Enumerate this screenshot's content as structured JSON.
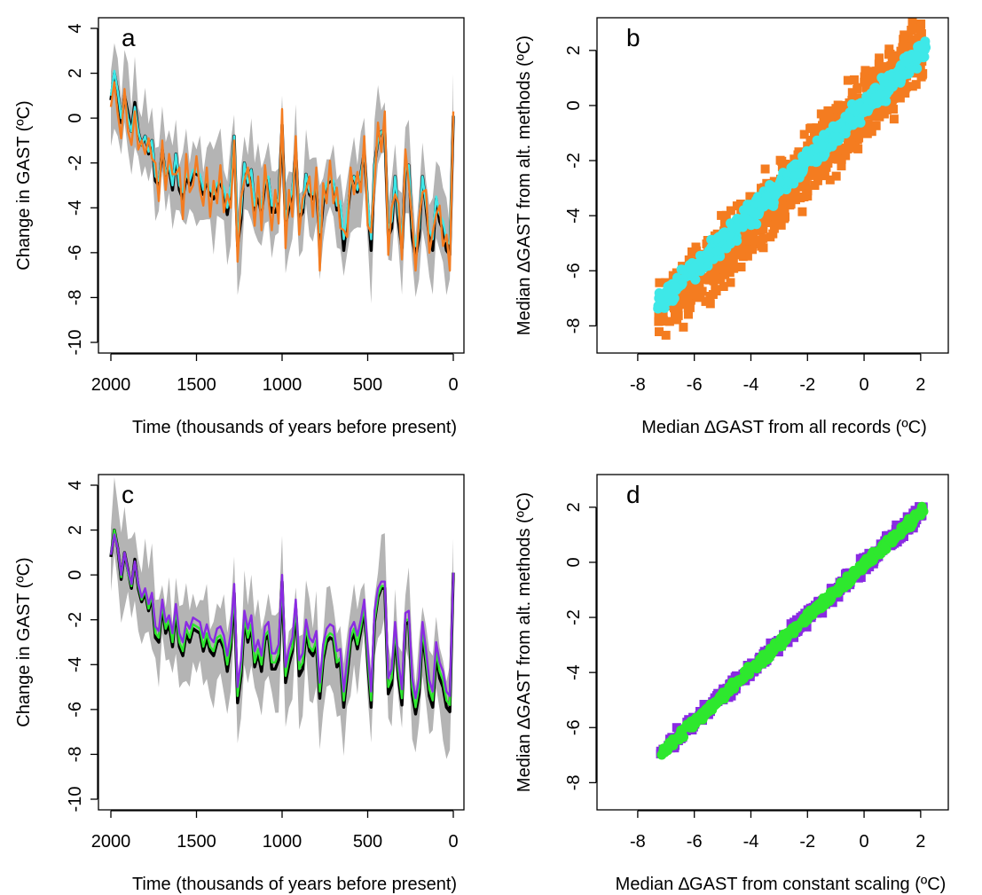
{
  "figure": {
    "colors": {
      "band": "#b4b4b4",
      "black": "#000000",
      "cyan": "#3ee8e8",
      "orange": "#f47c20",
      "purple": "#8a2be2",
      "green": "#2ee82e"
    }
  },
  "chart_data": [
    {
      "panel": "a",
      "type": "line",
      "label": "a",
      "xlabel": "Time (thousands of years before present)",
      "ylabel": "Change in GAST (ºC)",
      "xlim": [
        2000,
        0
      ],
      "ylim": [
        -10,
        4
      ],
      "xticks": [
        "2000",
        "1500",
        "1000",
        "500",
        "0"
      ],
      "yticks": [
        "-10",
        "-8",
        "-6",
        "-4",
        "-2",
        "0",
        "2",
        "4"
      ],
      "x": [
        2000,
        1980,
        1960,
        1940,
        1920,
        1900,
        1880,
        1860,
        1840,
        1820,
        1800,
        1780,
        1760,
        1740,
        1720,
        1700,
        1680,
        1660,
        1640,
        1620,
        1600,
        1580,
        1560,
        1540,
        1520,
        1500,
        1480,
        1460,
        1440,
        1420,
        1400,
        1380,
        1360,
        1340,
        1320,
        1300,
        1280,
        1260,
        1240,
        1220,
        1200,
        1180,
        1160,
        1140,
        1120,
        1100,
        1080,
        1060,
        1040,
        1020,
        1000,
        980,
        960,
        940,
        920,
        900,
        880,
        860,
        840,
        820,
        800,
        780,
        760,
        740,
        720,
        700,
        680,
        660,
        640,
        620,
        600,
        580,
        560,
        540,
        520,
        500,
        480,
        460,
        440,
        420,
        400,
        380,
        360,
        340,
        320,
        300,
        280,
        260,
        240,
        220,
        200,
        180,
        160,
        140,
        120,
        100,
        80,
        60,
        40,
        20,
        0
      ],
      "series": [
        {
          "color_key": "black",
          "values": [
            0.8,
            2.0,
            1.2,
            -0.2,
            1.0,
            0.2,
            -0.6,
            0.7,
            -0.6,
            -1.2,
            -0.8,
            -1.6,
            -1.0,
            -2.8,
            -3.0,
            -1.4,
            -2.6,
            -2.2,
            -3.2,
            -1.6,
            -3.2,
            -3.6,
            -2.6,
            -3.0,
            -2.4,
            -2.5,
            -2.6,
            -3.4,
            -2.8,
            -3.4,
            -3.6,
            -3.0,
            -2.9,
            -3.3,
            -4.3,
            -3.2,
            -0.8,
            -5.7,
            -4.5,
            -2.0,
            -3.0,
            -2.3,
            -4.1,
            -3.5,
            -4.3,
            -2.9,
            -2.7,
            -4.2,
            -4.2,
            -3.8,
            -0.3,
            -4.8,
            -4.0,
            -3.4,
            -1.5,
            -4.5,
            -4.2,
            -2.5,
            -3.4,
            -3.6,
            -3.1,
            -5.5,
            -3.8,
            -3.0,
            -2.8,
            -2.9,
            -4.1,
            -3.9,
            -5.9,
            -4.5,
            -3.0,
            -2.6,
            -3.3,
            -2.5,
            -1.5,
            -3.9,
            -5.9,
            -2.1,
            -1.0,
            -0.6,
            -0.6,
            -5.3,
            -4.9,
            -2.6,
            -4.6,
            -5.8,
            -2.2,
            -2.1,
            -5.3,
            -6.2,
            -5.3,
            -2.6,
            -3.9,
            -5.4,
            -5.9,
            -3.6,
            -4.6,
            -5.0,
            -5.9,
            -6.1,
            0.1
          ]
        },
        {
          "color_key": "cyan",
          "values": [
            1.0,
            2.1,
            1.2,
            0.0,
            1.0,
            0.0,
            -0.6,
            0.5,
            -0.6,
            -1.2,
            -0.8,
            -1.5,
            -1.0,
            -2.6,
            -2.8,
            -1.4,
            -2.5,
            -2.1,
            -3.0,
            -1.6,
            -3.0,
            -3.3,
            -2.5,
            -2.8,
            -2.3,
            -2.4,
            -2.5,
            -3.2,
            -2.7,
            -3.2,
            -3.4,
            -2.9,
            -2.8,
            -3.1,
            -4.0,
            -3.0,
            -0.8,
            -5.2,
            -4.2,
            -2.0,
            -2.9,
            -2.3,
            -3.9,
            -3.3,
            -4.0,
            -2.8,
            -2.6,
            -3.9,
            -3.9,
            -3.6,
            -0.4,
            -4.5,
            -3.8,
            -3.2,
            -1.5,
            -4.2,
            -4.0,
            -2.5,
            -3.3,
            -3.4,
            -3.0,
            -5.1,
            -3.6,
            -2.9,
            -2.7,
            -2.8,
            -3.9,
            -3.7,
            -5.4,
            -4.2,
            -2.9,
            -2.6,
            -3.2,
            -2.5,
            -1.5,
            -3.7,
            -5.4,
            -2.1,
            -1.0,
            -0.6,
            -0.6,
            -4.9,
            -4.6,
            -2.6,
            -4.3,
            -5.3,
            -2.2,
            -2.1,
            -4.9,
            -5.7,
            -4.9,
            -2.6,
            -3.8,
            -5.0,
            -5.4,
            -3.5,
            -4.3,
            -4.6,
            -5.5,
            -5.6,
            0.1
          ]
        },
        {
          "color_key": "orange",
          "values": [
            0.5,
            1.6,
            0.2,
            -0.9,
            1.3,
            -0.6,
            -1.2,
            0.3,
            -1.4,
            -1.0,
            -1.6,
            -0.9,
            -1.8,
            -2.0,
            -3.7,
            -1.0,
            -3.2,
            -1.6,
            -2.5,
            -2.5,
            -2.2,
            -4.5,
            -1.6,
            -3.3,
            -3.0,
            -1.7,
            -3.2,
            -3.9,
            -2.2,
            -4.4,
            -2.8,
            -3.8,
            -2.1,
            -4.2,
            -3.4,
            -4.0,
            -1.0,
            -6.4,
            -3.6,
            -2.8,
            -2.2,
            -3.2,
            -4.8,
            -2.6,
            -5.0,
            -2.1,
            -3.6,
            -5.0,
            -3.2,
            -4.7,
            0.4,
            -5.8,
            -3.2,
            -4.4,
            -0.8,
            -5.2,
            -3.6,
            -3.2,
            -2.6,
            -4.4,
            -2.2,
            -6.8,
            -2.9,
            -3.8,
            -1.9,
            -3.8,
            -3.1,
            -4.9,
            -5.0,
            -5.3,
            -2.2,
            -3.4,
            -2.4,
            -3.3,
            -0.8,
            -4.8,
            -5.1,
            -2.9,
            -0.2,
            -1.5,
            0.3,
            -6.1,
            -4.0,
            -3.4,
            -3.8,
            -6.3,
            -1.4,
            -2.9,
            -4.6,
            -6.8,
            -4.5,
            -3.3,
            -3.2,
            -6.0,
            -5.1,
            -4.3,
            -3.9,
            -5.7,
            -5.2,
            -6.8,
            0.3
          ]
        }
      ]
    },
    {
      "panel": "b",
      "type": "scatter",
      "label": "b",
      "xlabel": "Median ∆GAST from all records (ºC)",
      "ylabel": "Median ∆GAST from alt. methods (ºC)",
      "xlim": [
        -9,
        2.6
      ],
      "ylim": [
        -8.6,
        2.8
      ],
      "xticks": [
        "-8",
        "-6",
        "-4",
        "-2",
        "0",
        "2"
      ],
      "yticks": [
        "-8",
        "-6",
        "-4",
        "-2",
        "0",
        "2"
      ],
      "series": [
        {
          "color_key": "orange",
          "marker": "square",
          "x_range": [
            -7.3,
            2.1
          ],
          "fit": {
            "slope": 1.05,
            "intercept": -0.05
          },
          "spread": 0.9,
          "n": 900
        },
        {
          "color_key": "cyan",
          "marker": "circle",
          "x_range": [
            -7.3,
            2.2
          ],
          "fit": {
            "slope": 0.98,
            "intercept": -0.05
          },
          "spread": 0.3,
          "n": 600
        }
      ]
    },
    {
      "panel": "c",
      "type": "line",
      "label": "c",
      "xlabel": "Time (thousands of years before present)",
      "ylabel": "Change in GAST (ºC)",
      "xlim": [
        2000,
        0
      ],
      "ylim": [
        -10,
        4
      ],
      "xticks": [
        "2000",
        "1500",
        "1000",
        "500",
        "0"
      ],
      "yticks": [
        "-10",
        "-8",
        "-6",
        "-4",
        "-2",
        "0",
        "2",
        "4"
      ],
      "x": [
        2000,
        1980,
        1960,
        1940,
        1920,
        1900,
        1880,
        1860,
        1840,
        1820,
        1800,
        1780,
        1760,
        1740,
        1720,
        1700,
        1680,
        1660,
        1640,
        1620,
        1600,
        1580,
        1560,
        1540,
        1520,
        1500,
        1480,
        1460,
        1440,
        1420,
        1400,
        1380,
        1360,
        1340,
        1320,
        1300,
        1280,
        1260,
        1240,
        1220,
        1200,
        1180,
        1160,
        1140,
        1120,
        1100,
        1080,
        1060,
        1040,
        1020,
        1000,
        980,
        960,
        940,
        920,
        900,
        880,
        860,
        840,
        820,
        800,
        780,
        760,
        740,
        720,
        700,
        680,
        660,
        640,
        620,
        600,
        580,
        560,
        540,
        520,
        500,
        480,
        460,
        440,
        420,
        400,
        380,
        360,
        340,
        320,
        300,
        280,
        260,
        240,
        220,
        200,
        180,
        160,
        140,
        120,
        100,
        80,
        60,
        40,
        20,
        0
      ],
      "series": [
        {
          "color_key": "black",
          "values": [
            0.8,
            2.0,
            1.2,
            -0.2,
            1.0,
            0.2,
            -0.6,
            0.7,
            -0.6,
            -1.2,
            -0.8,
            -1.6,
            -1.0,
            -2.8,
            -3.0,
            -1.4,
            -2.6,
            -2.2,
            -3.2,
            -1.6,
            -3.2,
            -3.6,
            -2.6,
            -3.0,
            -2.4,
            -2.5,
            -2.6,
            -3.4,
            -2.8,
            -3.4,
            -3.6,
            -3.0,
            -2.9,
            -3.3,
            -4.3,
            -3.2,
            -0.8,
            -5.7,
            -4.5,
            -2.0,
            -3.0,
            -2.3,
            -4.1,
            -3.5,
            -4.3,
            -2.9,
            -2.7,
            -4.2,
            -4.2,
            -3.8,
            -0.3,
            -4.8,
            -4.0,
            -3.4,
            -1.5,
            -4.5,
            -4.2,
            -2.5,
            -3.4,
            -3.6,
            -3.1,
            -5.5,
            -3.8,
            -3.0,
            -2.8,
            -2.9,
            -4.1,
            -3.9,
            -5.9,
            -4.5,
            -3.0,
            -2.6,
            -3.3,
            -2.5,
            -1.5,
            -3.9,
            -5.9,
            -2.1,
            -1.0,
            -0.6,
            -0.6,
            -5.3,
            -4.9,
            -2.6,
            -4.6,
            -5.8,
            -2.2,
            -2.1,
            -5.3,
            -6.2,
            -5.3,
            -2.6,
            -3.9,
            -5.4,
            -5.9,
            -3.6,
            -4.6,
            -5.0,
            -5.9,
            -6.1,
            0.1
          ]
        },
        {
          "color_key": "green",
          "values": [
            0.9,
            2.0,
            1.2,
            -0.1,
            1.0,
            0.1,
            -0.5,
            0.6,
            -0.5,
            -1.1,
            -0.7,
            -1.5,
            -0.9,
            -2.6,
            -2.8,
            -1.3,
            -2.4,
            -2.0,
            -3.0,
            -1.5,
            -3.0,
            -3.4,
            -2.4,
            -2.8,
            -2.2,
            -2.3,
            -2.4,
            -3.2,
            -2.6,
            -3.2,
            -3.4,
            -2.8,
            -2.7,
            -3.1,
            -4.0,
            -3.0,
            -0.7,
            -5.4,
            -4.2,
            -1.9,
            -2.8,
            -2.2,
            -3.9,
            -3.3,
            -4.0,
            -2.7,
            -2.5,
            -3.9,
            -3.9,
            -3.5,
            -0.2,
            -4.5,
            -3.7,
            -3.2,
            -1.4,
            -4.2,
            -3.9,
            -2.3,
            -3.2,
            -3.4,
            -2.9,
            -5.2,
            -3.6,
            -2.8,
            -2.6,
            -2.7,
            -3.9,
            -3.7,
            -5.6,
            -4.2,
            -2.8,
            -2.4,
            -3.1,
            -2.3,
            -1.4,
            -3.7,
            -5.6,
            -2.0,
            -0.9,
            -0.5,
            -0.5,
            -5.0,
            -4.6,
            -2.4,
            -4.3,
            -5.5,
            -2.0,
            -2.0,
            -5.0,
            -5.9,
            -5.0,
            -2.4,
            -3.7,
            -5.1,
            -5.6,
            -3.4,
            -4.3,
            -4.7,
            -5.6,
            -5.8,
            0.1
          ]
        },
        {
          "color_key": "purple",
          "values": [
            0.9,
            1.8,
            1.2,
            0.0,
            1.0,
            0.2,
            -0.4,
            0.6,
            -0.4,
            -1.0,
            -0.6,
            -1.3,
            -0.8,
            -2.3,
            -2.5,
            -1.1,
            -2.1,
            -1.8,
            -2.6,
            -1.3,
            -2.6,
            -3.0,
            -2.1,
            -2.4,
            -1.9,
            -2.0,
            -2.1,
            -2.8,
            -2.2,
            -2.8,
            -3.0,
            -2.4,
            -2.3,
            -2.7,
            -3.6,
            -2.6,
            -0.4,
            -5.0,
            -3.8,
            -1.6,
            -2.4,
            -1.8,
            -3.4,
            -2.9,
            -3.6,
            -2.3,
            -2.1,
            -3.5,
            -3.5,
            -3.1,
            0.0,
            -4.1,
            -3.3,
            -2.8,
            -1.1,
            -3.8,
            -3.5,
            -2.0,
            -2.8,
            -3.0,
            -2.5,
            -4.8,
            -3.1,
            -2.4,
            -2.2,
            -2.3,
            -3.4,
            -3.3,
            -5.2,
            -3.8,
            -2.4,
            -2.1,
            -2.7,
            -2.0,
            -1.1,
            -3.3,
            -5.2,
            -1.6,
            -0.6,
            -0.3,
            -0.3,
            -4.6,
            -4.2,
            -2.1,
            -3.9,
            -5.1,
            -1.7,
            -1.6,
            -4.6,
            -5.5,
            -4.6,
            -2.1,
            -3.3,
            -4.7,
            -5.2,
            -3.0,
            -3.9,
            -4.3,
            -5.2,
            -5.4,
            0.1
          ]
        }
      ]
    },
    {
      "panel": "d",
      "type": "scatter",
      "label": "d",
      "xlabel": "Median ∆GAST from constant scaling (ºC)",
      "ylabel": "Median ∆GAST from alt. methods (ºC)",
      "xlim": [
        -9,
        2.6
      ],
      "ylim": [
        -8.6,
        2.8
      ],
      "xticks": [
        "-8",
        "-6",
        "-4",
        "-2",
        "0",
        "2"
      ],
      "yticks": [
        "-8",
        "-6",
        "-4",
        "-2",
        "0",
        "2"
      ],
      "series": [
        {
          "color_key": "purple",
          "marker": "square",
          "x_range": [
            -7.2,
            2.1
          ],
          "fit": {
            "slope": 0.95,
            "intercept": -0.1
          },
          "spread": 0.22,
          "n": 500
        },
        {
          "color_key": "green",
          "marker": "circle",
          "x_range": [
            -7.2,
            2.1
          ],
          "fit": {
            "slope": 0.95,
            "intercept": -0.1
          },
          "spread": 0.12,
          "n": 500
        }
      ]
    }
  ]
}
